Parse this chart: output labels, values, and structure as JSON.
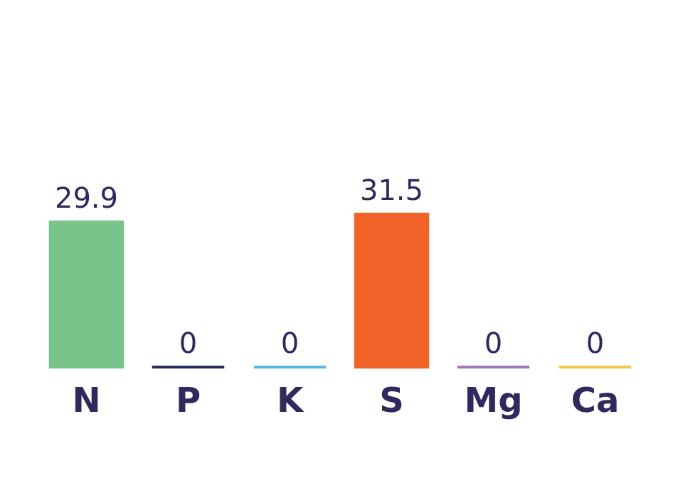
{
  "chart_data": {
    "type": "bar",
    "categories": [
      "N",
      "P",
      "K",
      "S",
      "Mg",
      "Ca"
    ],
    "values": [
      29.9,
      0,
      0,
      31.5,
      0,
      0
    ],
    "colors": [
      "#78c48a",
      "#2b2a5e",
      "#5bb8e0",
      "#ef6329",
      "#9b7ac0",
      "#f2c94c"
    ],
    "data_labels": true
  }
}
